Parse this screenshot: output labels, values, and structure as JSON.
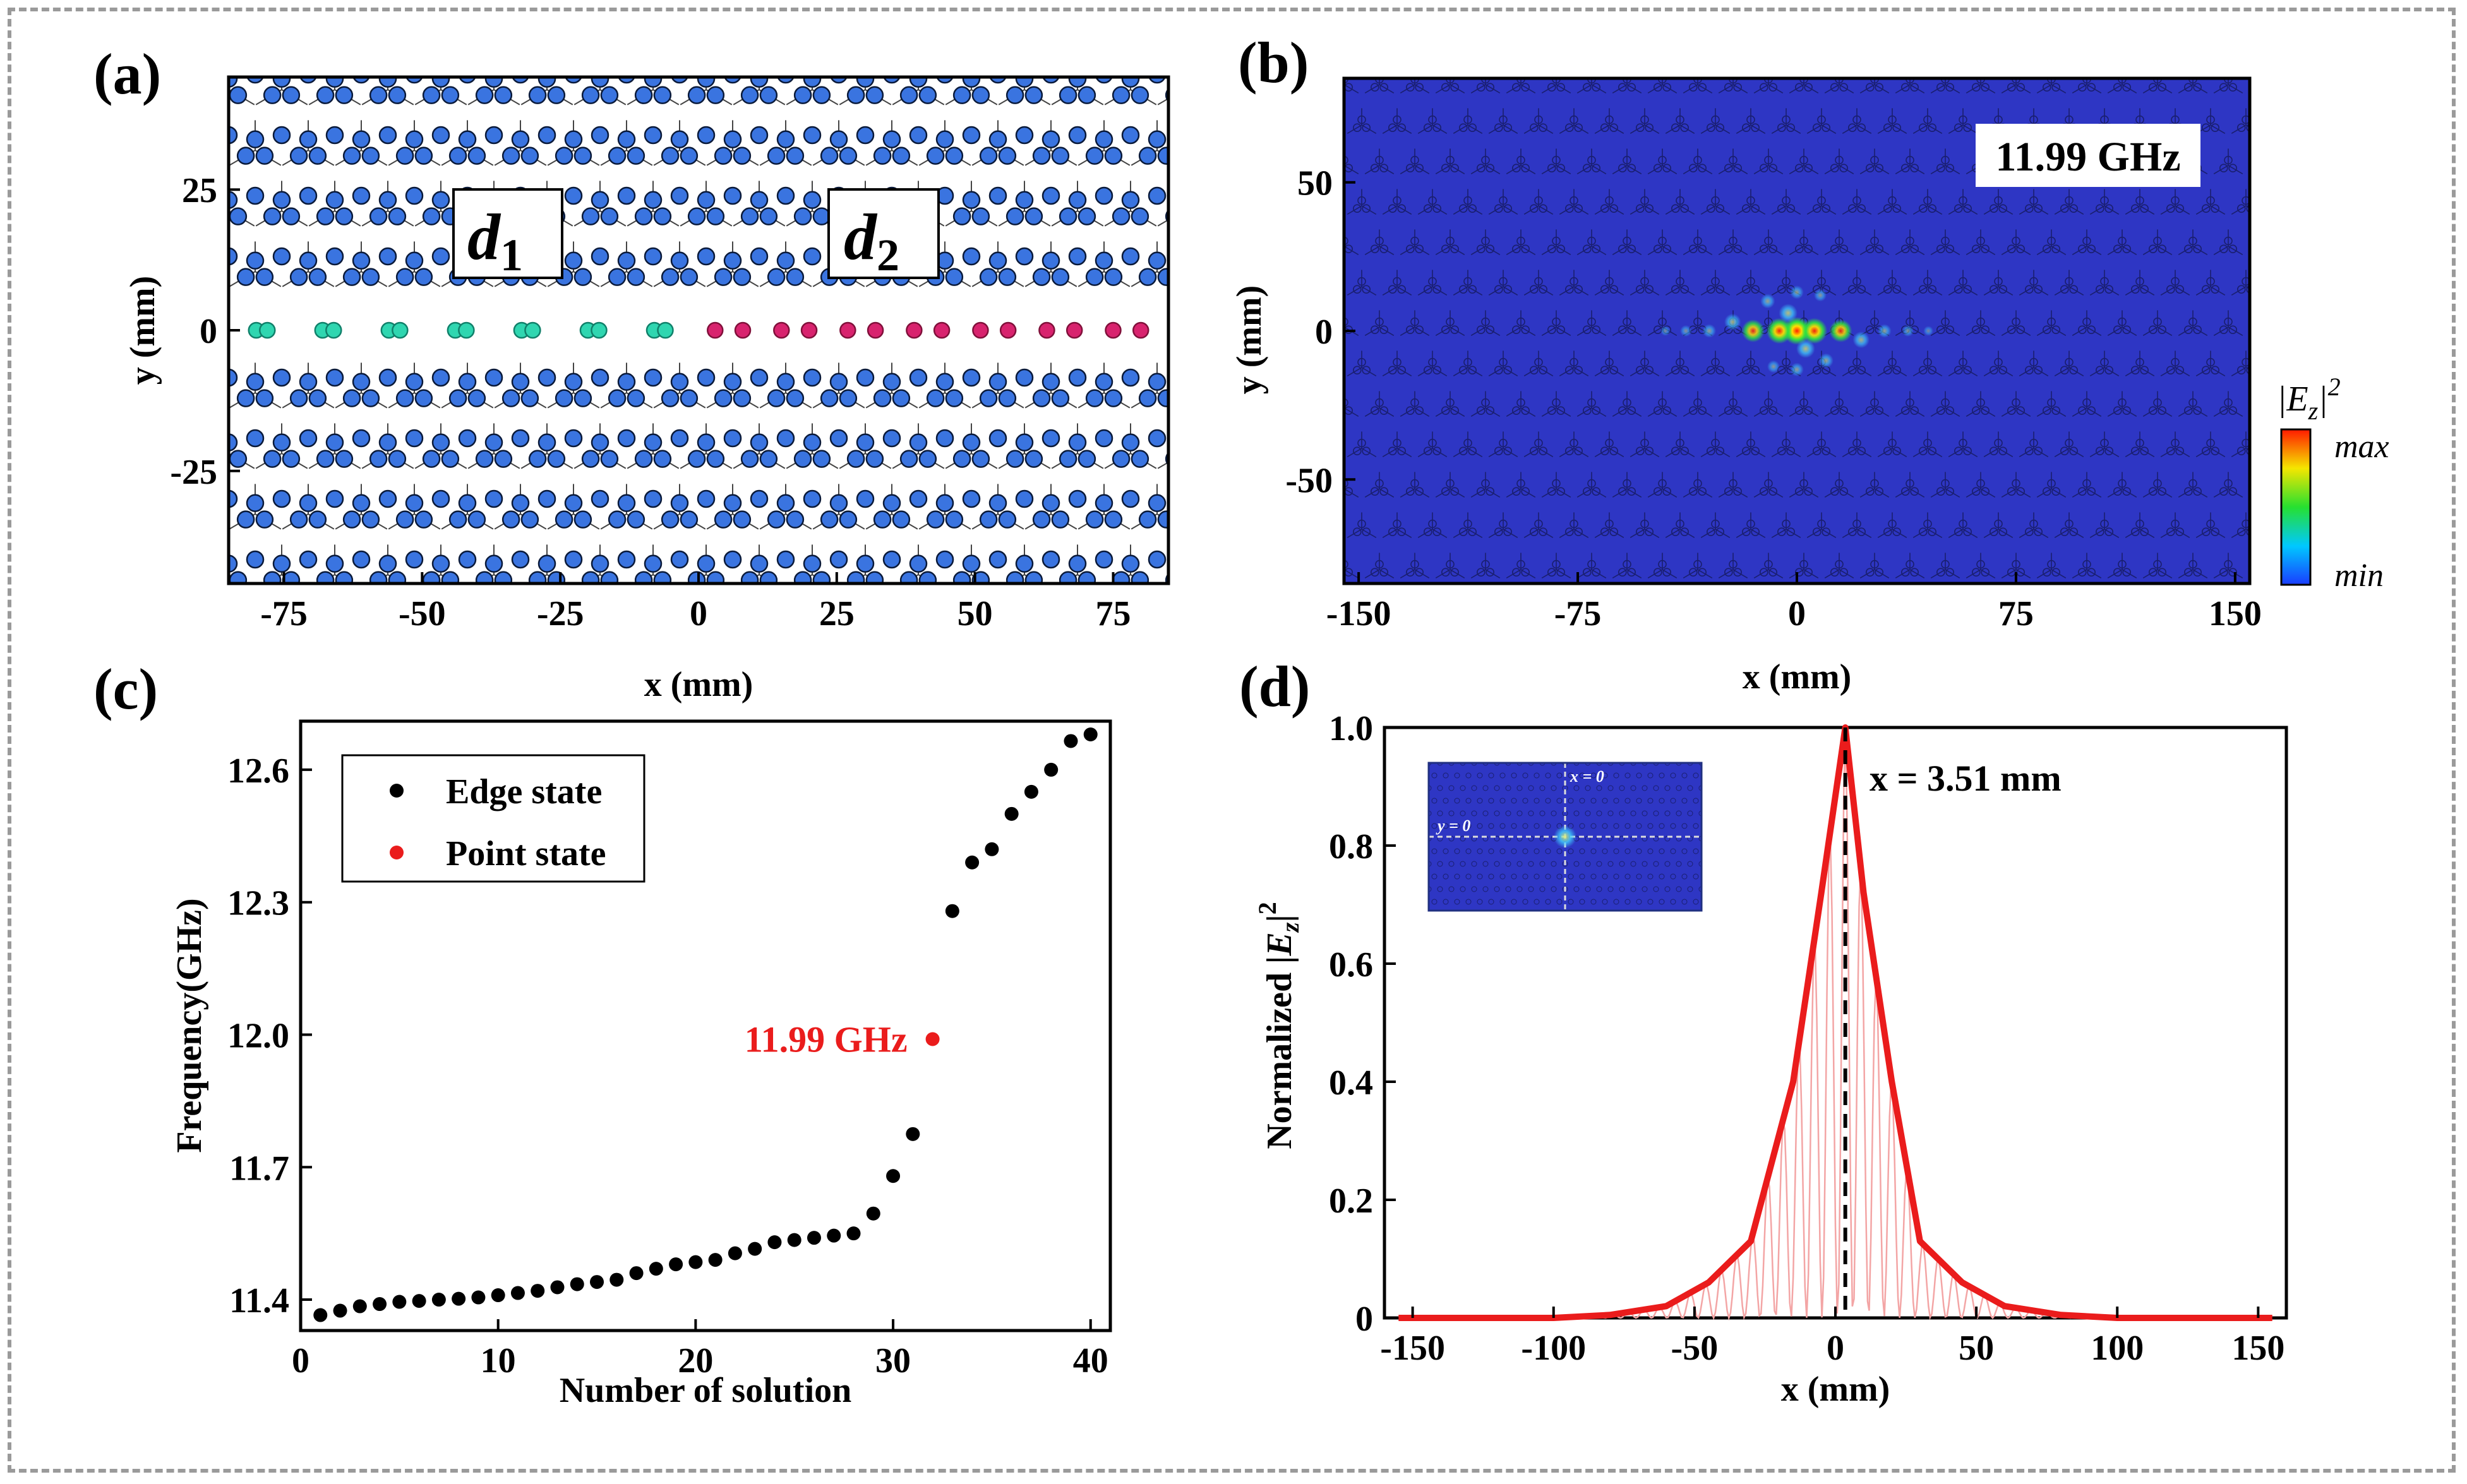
{
  "panels": {
    "a": "(a)",
    "b": "(b)",
    "c": "(c)",
    "d": "(d)"
  },
  "colors": {
    "disk": "#3a74e0",
    "disk_edge": "#0a1a3a",
    "domain_d1": "#2fd6b0",
    "domain_d2": "#d8236e",
    "field_bg": "#2e36c4",
    "curve": "#ea1c1c",
    "edge_point": "#000000",
    "point_state": "#ea1c1c"
  },
  "chart_data": [
    {
      "id": "a",
      "type": "scatter",
      "title": "",
      "xlabel": "x (mm)",
      "ylabel": "y (mm)",
      "xlim": [
        -85,
        85
      ],
      "ylim": [
        -45,
        45
      ],
      "xticks": [
        -75,
        -50,
        -25,
        0,
        25,
        50,
        75
      ],
      "yticks": [
        25,
        0,
        -25
      ],
      "domain_labels": [
        {
          "text": "d",
          "sub": "1",
          "x": -35,
          "y": 18
        },
        {
          "text": "d",
          "sub": "2",
          "x": 30,
          "y": 18
        }
      ],
      "interface_row": {
        "y": 0,
        "d1_x": [
          -80,
          -78,
          -68,
          -66,
          -56,
          -54,
          -44,
          -42,
          -32,
          -30,
          -20,
          -18,
          -8,
          -6
        ],
        "d2_x": [
          3,
          8,
          15,
          20,
          27,
          32,
          39,
          44,
          51,
          56,
          63,
          68,
          75,
          80
        ]
      }
    },
    {
      "id": "b",
      "type": "heatmap",
      "title": "11.99 GHz",
      "xlabel": "x (mm)",
      "ylabel": "y (mm)",
      "xlim": [
        -155,
        155
      ],
      "ylim": [
        -85,
        85
      ],
      "xticks": [
        -150,
        -75,
        0,
        75,
        150
      ],
      "yticks": [
        50,
        0,
        -50
      ],
      "colorbar": {
        "label": "|E",
        "sub": "z",
        "sup": "2",
        "label_end": "|",
        "max": "max",
        "min": "min"
      },
      "hotspots": [
        {
          "x": 0,
          "y": 0,
          "v": 1.0
        },
        {
          "x": -6,
          "y": 0,
          "v": 0.9
        },
        {
          "x": 6,
          "y": 0,
          "v": 0.9
        },
        {
          "x": -15,
          "y": 0,
          "v": 0.75
        },
        {
          "x": 15,
          "y": 0,
          "v": 0.75
        },
        {
          "x": -3,
          "y": 6,
          "v": 0.55
        },
        {
          "x": 3,
          "y": -6,
          "v": 0.55
        },
        {
          "x": -22,
          "y": 3,
          "v": 0.45
        },
        {
          "x": 22,
          "y": -3,
          "v": 0.45
        },
        {
          "x": -10,
          "y": 10,
          "v": 0.35
        },
        {
          "x": 10,
          "y": -10,
          "v": 0.35
        },
        {
          "x": -30,
          "y": 0,
          "v": 0.3
        },
        {
          "x": 30,
          "y": 0,
          "v": 0.3
        },
        {
          "x": 0,
          "y": 13,
          "v": 0.3
        },
        {
          "x": 0,
          "y": -13,
          "v": 0.3
        },
        {
          "x": -38,
          "y": 0,
          "v": 0.2
        },
        {
          "x": 38,
          "y": 0,
          "v": 0.2
        },
        {
          "x": -8,
          "y": -12,
          "v": 0.25
        },
        {
          "x": 8,
          "y": 12,
          "v": 0.25
        },
        {
          "x": -45,
          "y": 0,
          "v": 0.12
        },
        {
          "x": 45,
          "y": 0,
          "v": 0.12
        }
      ]
    },
    {
      "id": "c",
      "type": "scatter",
      "title": "",
      "xlabel": "Number of solution",
      "ylabel": "Frequency(GHz)",
      "xlim": [
        0,
        41
      ],
      "ylim": [
        11.33,
        12.71
      ],
      "xticks": [
        0,
        10,
        20,
        30,
        40
      ],
      "yticks": [
        11.4,
        11.7,
        12.0,
        12.3,
        12.6
      ],
      "legend": {
        "position": "top-left",
        "entries": [
          "Edge state",
          "Point state"
        ]
      },
      "series": [
        {
          "name": "Edge state",
          "x": [
            1,
            2,
            3,
            4,
            5,
            6,
            7,
            8,
            9,
            10,
            11,
            12,
            13,
            14,
            15,
            16,
            17,
            18,
            19,
            20,
            21,
            22,
            23,
            24,
            25,
            26,
            27,
            28,
            29,
            30,
            31,
            33,
            34,
            35,
            36,
            37,
            38,
            39,
            40
          ],
          "y": [
            11.365,
            11.375,
            11.385,
            11.39,
            11.395,
            11.397,
            11.4,
            11.402,
            11.405,
            11.41,
            11.415,
            11.42,
            11.428,
            11.435,
            11.44,
            11.445,
            11.46,
            11.47,
            11.48,
            11.485,
            11.49,
            11.505,
            11.515,
            11.53,
            11.535,
            11.54,
            11.545,
            11.55,
            11.595,
            11.68,
            11.775,
            12.28,
            12.39,
            12.42,
            12.5,
            12.55,
            12.6,
            12.665,
            12.68
          ]
        },
        {
          "name": "Point state",
          "x": [
            32
          ],
          "y": [
            11.99
          ]
        }
      ],
      "annotation": {
        "text": "11.99 GHz",
        "x": 32,
        "y": 11.99
      }
    },
    {
      "id": "d",
      "type": "line",
      "title": "",
      "xlabel": "x (mm)",
      "ylabel": "Normalized",
      "ylabel_field": {
        "label": "|E",
        "sub": "z",
        "sup": "2",
        "label_end": "|"
      },
      "xlim": [
        -160,
        160
      ],
      "ylim": [
        0,
        1.0
      ],
      "xticks": [
        -150,
        -100,
        -50,
        0,
        50,
        100,
        150
      ],
      "yticks": [
        0,
        0.2,
        0.4,
        0.6,
        0.8,
        1.0
      ],
      "ytick_labels": [
        "0",
        "0.2",
        "0.4",
        "0.6",
        "0.8",
        "1.0"
      ],
      "marker_line": {
        "x": 3.51,
        "label": "x = 3.51 mm"
      },
      "envelope": {
        "x": [
          -155,
          -130,
          -100,
          -80,
          -60,
          -45,
          -30,
          -15,
          -5,
          3.51,
          10,
          20,
          30,
          45,
          60,
          80,
          100,
          130,
          155
        ],
        "y": [
          0,
          0,
          0,
          0.005,
          0.02,
          0.06,
          0.13,
          0.4,
          0.72,
          1.0,
          0.72,
          0.4,
          0.13,
          0.06,
          0.02,
          0.005,
          0,
          0,
          0
        ]
      },
      "inset": {
        "x_label": "x = 0",
        "y_label": "y = 0"
      }
    }
  ]
}
